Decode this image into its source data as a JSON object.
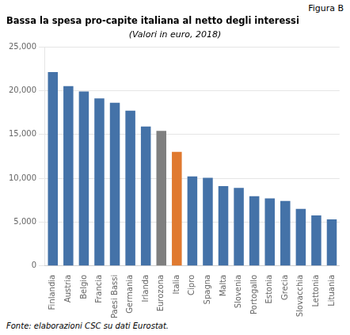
{
  "chart_data": {
    "type": "bar",
    "title": "Bassa la spesa pro-capite italiana al netto degli interessi",
    "subtitle": "(Valori in euro, 2018)",
    "annotations": [
      "Figura B",
      "Fonte: elaborazioni CSC su dati Eurostat."
    ],
    "categories": [
      "Finlandia",
      "Austria",
      "Belgio",
      "Francia",
      "Paesi Bassi",
      "Germania",
      "Irlanda",
      "Eurozona",
      "Italia",
      "Cipro",
      "Spagna",
      "Malta",
      "Slovenia",
      "Portogallo",
      "Estonia",
      "Grecia",
      "Slovacchia",
      "Lettonia",
      "Lituania"
    ],
    "values": [
      22100,
      20500,
      19900,
      19100,
      18600,
      17700,
      15900,
      15400,
      13000,
      10200,
      10050,
      9100,
      8900,
      7950,
      7700,
      7400,
      6500,
      5750,
      5300
    ],
    "colors": [
      "#4472a8",
      "#4472a8",
      "#4472a8",
      "#4472a8",
      "#4472a8",
      "#4472a8",
      "#4472a8",
      "#7f7f7f",
      "#e07a30",
      "#4472a8",
      "#4472a8",
      "#4472a8",
      "#4472a8",
      "#4472a8",
      "#4472a8",
      "#4472a8",
      "#4472a8",
      "#4472a8",
      "#4472a8"
    ],
    "ylim": [
      0,
      25000
    ],
    "yticks": [
      0,
      {
        "value": 5000,
        "label": "5,000"
      },
      {
        "value": 10000,
        "label": "10,000"
      },
      {
        "value": 15000,
        "label": "15,000"
      },
      {
        "value": 20000,
        "label": "20,000"
      },
      {
        "value": 25000,
        "label": "25,000"
      }
    ],
    "grid": true
  }
}
